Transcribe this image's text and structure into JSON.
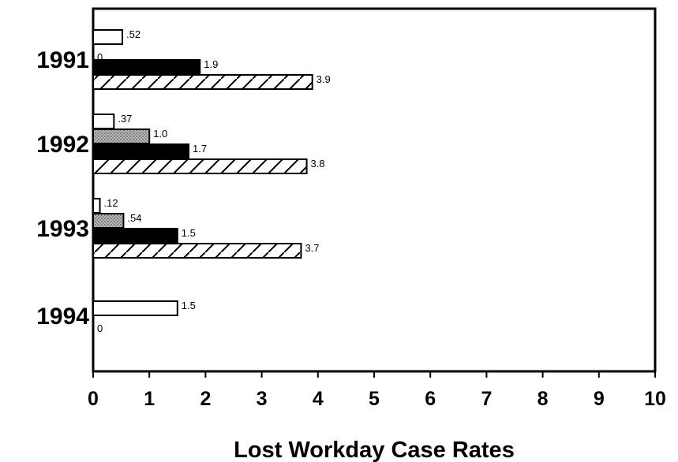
{
  "chart_data": {
    "type": "bar",
    "orientation": "horizontal",
    "categories": [
      "1991",
      "1992",
      "1993",
      "1994"
    ],
    "series": [
      {
        "fill": "white",
        "values": [
          0.52,
          0.37,
          0.12,
          1.5
        ],
        "labels": [
          ".52",
          ".37",
          ".12",
          "1.5"
        ]
      },
      {
        "fill": "stipple",
        "values": [
          0,
          1.0,
          0.54,
          0
        ],
        "labels": [
          "0",
          "1.0",
          ".54",
          "0"
        ]
      },
      {
        "fill": "black",
        "values": [
          1.9,
          1.7,
          1.5,
          null
        ],
        "labels": [
          "1.9",
          "1.7",
          "1.5",
          ""
        ]
      },
      {
        "fill": "hatched",
        "values": [
          3.9,
          3.8,
          3.7,
          null
        ],
        "labels": [
          "3.9",
          "3.8",
          "3.7",
          ""
        ]
      }
    ],
    "xlabel": "Lost Workday Case Rates",
    "xlim": [
      0,
      10
    ],
    "xticks": [
      "0",
      "1",
      "2",
      "3",
      "4",
      "5",
      "6",
      "7",
      "8",
      "9",
      "10"
    ],
    "grid": false,
    "colors": {
      "ink": "#000000",
      "background": "#ffffff",
      "stipple": "#a8a8a8"
    }
  }
}
